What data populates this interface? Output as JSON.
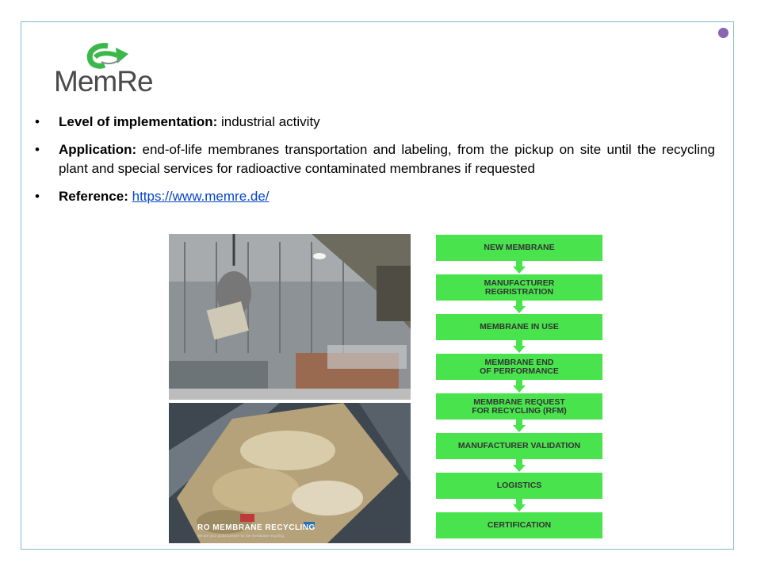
{
  "logo": {
    "text": "MemRe",
    "icon": "recycle-arrow-icon"
  },
  "bullets": [
    {
      "label": "Level of implementation:",
      "text": " industrial activity"
    },
    {
      "label": "Application:",
      "text": " end-of-life membranes  transportation and labeling, from the pickup on site until the recycling plant and special services for radioactive contaminated membranes  if requested"
    },
    {
      "label": "Reference:",
      "link": "https://www.memre.de/"
    }
  ],
  "photos": {
    "photo1": "crane-grabber-photo",
    "photo2": {
      "caption": "RO MEMBRANE RECYCLING",
      "subcaption": "We are your global partner for the membrane recycling"
    }
  },
  "flowchart": {
    "steps": [
      "NEW MEMBRANE",
      "MANUFACTURER\nREGRISTRATION",
      "MEMBRANE IN USE",
      "MEMBRANE END\nOF PERFORMANCE",
      "MEMBRANE REQUEST\nFOR RECYCLING (RFM)",
      "MANUFACTURER VALIDATION",
      "LOGISTICS",
      "CERTIFICATION"
    ]
  },
  "colors": {
    "accent_green": "#49e34d",
    "link": "#0645c9",
    "frame": "#7fb8cf",
    "dot": "#8a63b3"
  }
}
